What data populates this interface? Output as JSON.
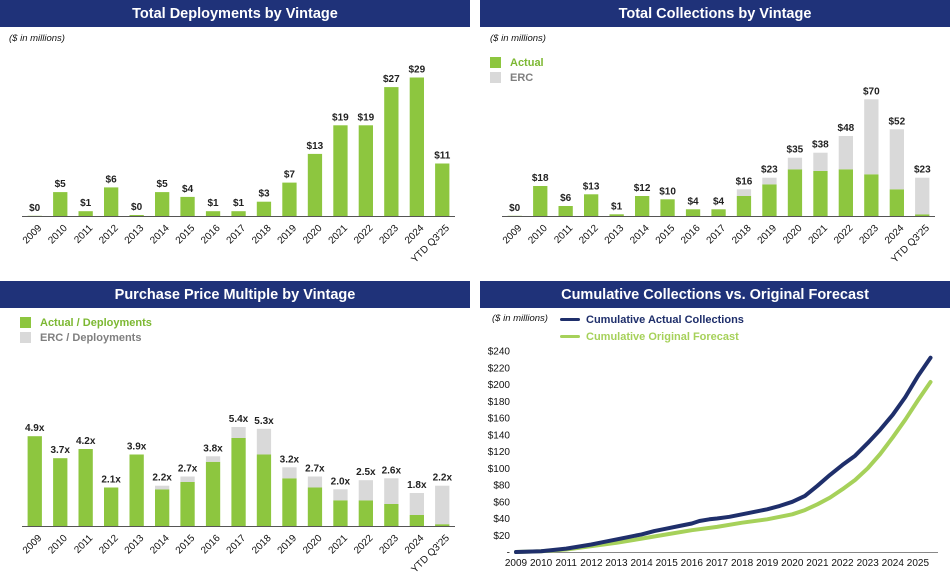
{
  "colors": {
    "header_bg": "#1f3279",
    "actual": "#8dc63f",
    "erc": "#d9d9d9",
    "navy_line": "#1f2f6b",
    "green_line": "#a6d15a",
    "axis": "#555555",
    "label_dark": "#222222",
    "legend_green": "#7cb832",
    "legend_grey": "#7f7f7f"
  },
  "panels": {
    "deployments": {
      "title": "Total Deployments by Vintage",
      "unit_note": "($ in millions)"
    },
    "collections": {
      "title": "Total Collections by Vintage",
      "unit_note": "($ in millions)",
      "legend": {
        "actual": "Actual",
        "erc": "ERC"
      }
    },
    "multiple": {
      "title": "Purchase Price Multiple by Vintage",
      "legend": {
        "actual": "Actual / Deployments",
        "erc": "ERC / Deployments"
      }
    },
    "cumulative": {
      "title": "Cumulative Collections vs. Original Forecast",
      "unit_note": "($ in millions)",
      "legend": {
        "actual": "Cumulative Actual Collections",
        "forecast": "Cumulative Original Forecast"
      }
    }
  },
  "chart_data": [
    {
      "id": "deployments",
      "type": "bar",
      "title": "Total Deployments by Vintage",
      "ylabel": "$ in millions",
      "categories": [
        "2009",
        "2010",
        "2011",
        "2012",
        "2013",
        "2014",
        "2015",
        "2016",
        "2017",
        "2018",
        "2019",
        "2020",
        "2021",
        "2022",
        "2023",
        "2024",
        "YTD Q3'25"
      ],
      "values": [
        0.05,
        5,
        1,
        6,
        0.2,
        5,
        4,
        1,
        1,
        3,
        7,
        13,
        19,
        19,
        27,
        29,
        11
      ],
      "labels": [
        "$0",
        "$5",
        "$1",
        "$6",
        "$0",
        "$5",
        "$4",
        "$1",
        "$1",
        "$3",
        "$7",
        "$13",
        "$19",
        "$19",
        "$27",
        "$29",
        "$11"
      ],
      "ylim": [
        0,
        31
      ]
    },
    {
      "id": "collections",
      "type": "bar",
      "stacked": true,
      "title": "Total Collections by Vintage",
      "ylabel": "$ in millions",
      "categories": [
        "2009",
        "2010",
        "2011",
        "2012",
        "2013",
        "2014",
        "2015",
        "2016",
        "2017",
        "2018",
        "2019",
        "2020",
        "2021",
        "2022",
        "2023",
        "2024",
        "YTD Q3'25"
      ],
      "series": [
        {
          "name": "Actual",
          "values": [
            0.1,
            18,
            6,
            13,
            1,
            12,
            10,
            4,
            4,
            12,
            19,
            28,
            27,
            28,
            25,
            16,
            1
          ]
        },
        {
          "name": "ERC",
          "values": [
            0,
            0,
            0,
            0,
            0,
            0,
            0,
            0,
            0,
            4,
            4,
            7,
            11,
            20,
            45,
            36,
            22
          ]
        }
      ],
      "labels": [
        "$0",
        "$18",
        "$6",
        "$13",
        "$1",
        "$12",
        "$10",
        "$4",
        "$4",
        "$16",
        "$23",
        "$35",
        "$38",
        "$48",
        "$70",
        "$52",
        "$23"
      ],
      "ylim": [
        0,
        78
      ]
    },
    {
      "id": "multiple",
      "type": "bar",
      "stacked": true,
      "title": "Purchase Price Multiple by Vintage",
      "categories": [
        "2009",
        "2010",
        "2011",
        "2012",
        "2013",
        "2014",
        "2015",
        "2016",
        "2017",
        "2018",
        "2019",
        "2020",
        "2021",
        "2022",
        "2023",
        "2024",
        "YTD Q3'25"
      ],
      "series": [
        {
          "name": "Actual / Deployments",
          "values": [
            4.9,
            3.7,
            4.2,
            2.1,
            3.9,
            2.0,
            2.4,
            3.5,
            4.8,
            3.9,
            2.6,
            2.1,
            1.4,
            1.4,
            1.2,
            0.6,
            0.1
          ]
        },
        {
          "name": "ERC / Deployments",
          "values": [
            0,
            0,
            0,
            0,
            0,
            0.2,
            0.3,
            0.3,
            0.6,
            1.4,
            0.6,
            0.6,
            0.6,
            1.1,
            1.4,
            1.2,
            2.1
          ]
        }
      ],
      "labels": [
        "4.9x",
        "3.7x",
        "4.2x",
        "2.1x",
        "3.9x",
        "2.2x",
        "2.7x",
        "3.8x",
        "5.4x",
        "5.3x",
        "3.2x",
        "2.7x",
        "2.0x",
        "2.5x",
        "2.6x",
        "1.8x",
        "2.2x"
      ],
      "ylim": [
        0,
        9
      ]
    },
    {
      "id": "cumulative",
      "type": "line",
      "title": "Cumulative Collections vs. Original Forecast",
      "ylabel": "$ in millions",
      "x_ticks": [
        "2009",
        "2010",
        "2011",
        "2012",
        "2013",
        "2014",
        "2015",
        "2016",
        "2017",
        "2018",
        "2019",
        "2020",
        "2021",
        "2022",
        "2023",
        "2024",
        "2025"
      ],
      "y_ticks": [
        "-",
        "$20",
        "$40",
        "$60",
        "$80",
        "$100",
        "$120",
        "$140",
        "$160",
        "$180",
        "$200",
        "$220",
        "$240"
      ],
      "ylim": [
        0,
        240
      ],
      "xlim": [
        2009,
        2025.8
      ],
      "series": [
        {
          "name": "Cumulative Actual Collections",
          "x": [
            2009,
            2010,
            2011,
            2012,
            2012.5,
            2013,
            2013.5,
            2014,
            2014.5,
            2015,
            2015.5,
            2016,
            2016.3,
            2016.7,
            2017,
            2017.5,
            2018,
            2018.5,
            2019,
            2019.5,
            2020,
            2020.5,
            2021,
            2021.5,
            2022,
            2022.5,
            2023,
            2023.5,
            2024,
            2024.5,
            2025,
            2025.5
          ],
          "y": [
            0,
            1,
            4,
            9,
            12,
            15,
            18,
            21,
            25,
            28,
            31,
            34,
            37,
            39,
            40,
            42,
            45,
            48,
            51,
            55,
            60,
            67,
            79,
            92,
            104,
            115,
            130,
            146,
            164,
            185,
            210,
            232
          ]
        },
        {
          "name": "Cumulative Original Forecast",
          "x": [
            2009,
            2010,
            2011,
            2012,
            2013,
            2014,
            2015,
            2016,
            2017,
            2018,
            2019,
            2019.5,
            2020,
            2020.5,
            2021,
            2021.5,
            2022,
            2022.5,
            2023,
            2023.5,
            2024,
            2024.5,
            2025,
            2025.5
          ],
          "y": [
            0,
            1,
            3,
            7,
            11,
            16,
            21,
            26,
            30,
            35,
            39,
            42,
            45,
            50,
            57,
            65,
            75,
            86,
            100,
            117,
            137,
            158,
            181,
            203
          ]
        }
      ]
    }
  ]
}
